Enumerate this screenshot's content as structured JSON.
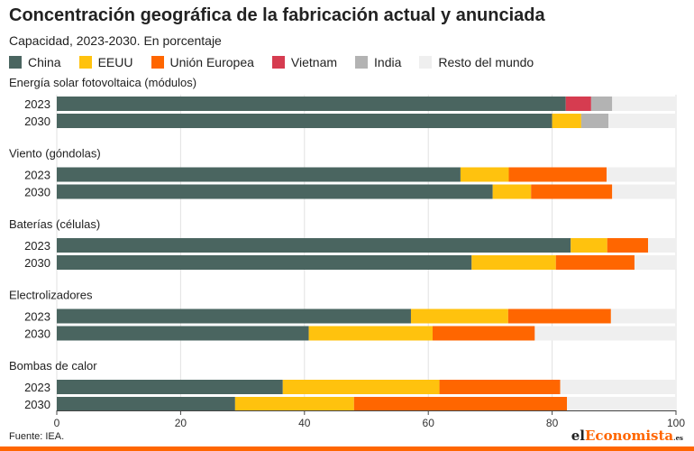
{
  "header": {
    "title": "Concentración geográfica de la fabricación actual y anunciada",
    "subtitle": "Capacidad, 2023-2030. En porcentaje"
  },
  "footer": {
    "source": "Fuente: IEA.",
    "brand_prefix": "el",
    "brand_accent": "Economista",
    "brand_suffix": ".es"
  },
  "chart_data": {
    "type": "bar",
    "orientation": "horizontal",
    "stacked": true,
    "xlim": [
      0,
      100
    ],
    "xticks": [
      0,
      20,
      40,
      60,
      80,
      100
    ],
    "grid": true,
    "legend_position": "top",
    "series": [
      {
        "name": "China",
        "color": "#4a6560"
      },
      {
        "name": "EEUU",
        "color": "#ffc20e"
      },
      {
        "name": "Unión Europea",
        "color": "#ff6600"
      },
      {
        "name": "Vietnam",
        "color": "#d63c50"
      },
      {
        "name": "India",
        "color": "#b3b3b3"
      },
      {
        "name": "Resto del mundo",
        "color": "#efefef"
      }
    ],
    "groups": [
      {
        "label": "Energía solar fotovoltaica (módulos)",
        "bars": [
          {
            "year": "2023",
            "values": [
              82.2,
              0,
              0,
              4.1,
              3.4,
              10.3
            ]
          },
          {
            "year": "2030",
            "values": [
              80.0,
              4.7,
              0,
              0,
              4.4,
              10.9
            ]
          }
        ]
      },
      {
        "label": "Viento (góndolas)",
        "bars": [
          {
            "year": "2023",
            "values": [
              65.2,
              7.8,
              15.8,
              0,
              0,
              11.2
            ]
          },
          {
            "year": "2030",
            "values": [
              70.4,
              6.2,
              13.1,
              0,
              0,
              10.3
            ]
          }
        ]
      },
      {
        "label": "Baterías (células)",
        "bars": [
          {
            "year": "2023",
            "values": [
              83.0,
              5.9,
              6.6,
              0,
              0,
              4.5
            ]
          },
          {
            "year": "2030",
            "values": [
              67.0,
              13.6,
              12.7,
              0,
              0,
              6.7
            ]
          }
        ]
      },
      {
        "label": "Electrolizadores",
        "bars": [
          {
            "year": "2023",
            "values": [
              57.2,
              15.7,
              16.6,
              0,
              0,
              10.5
            ]
          },
          {
            "year": "2030",
            "values": [
              40.7,
              20.0,
              16.5,
              0,
              0,
              22.8
            ]
          }
        ]
      },
      {
        "label": "Bombas de calor",
        "bars": [
          {
            "year": "2023",
            "values": [
              36.5,
              25.3,
              19.5,
              0,
              0,
              18.7
            ]
          },
          {
            "year": "2030",
            "values": [
              28.8,
              19.2,
              34.4,
              0,
              0,
              17.6
            ]
          }
        ]
      }
    ]
  }
}
